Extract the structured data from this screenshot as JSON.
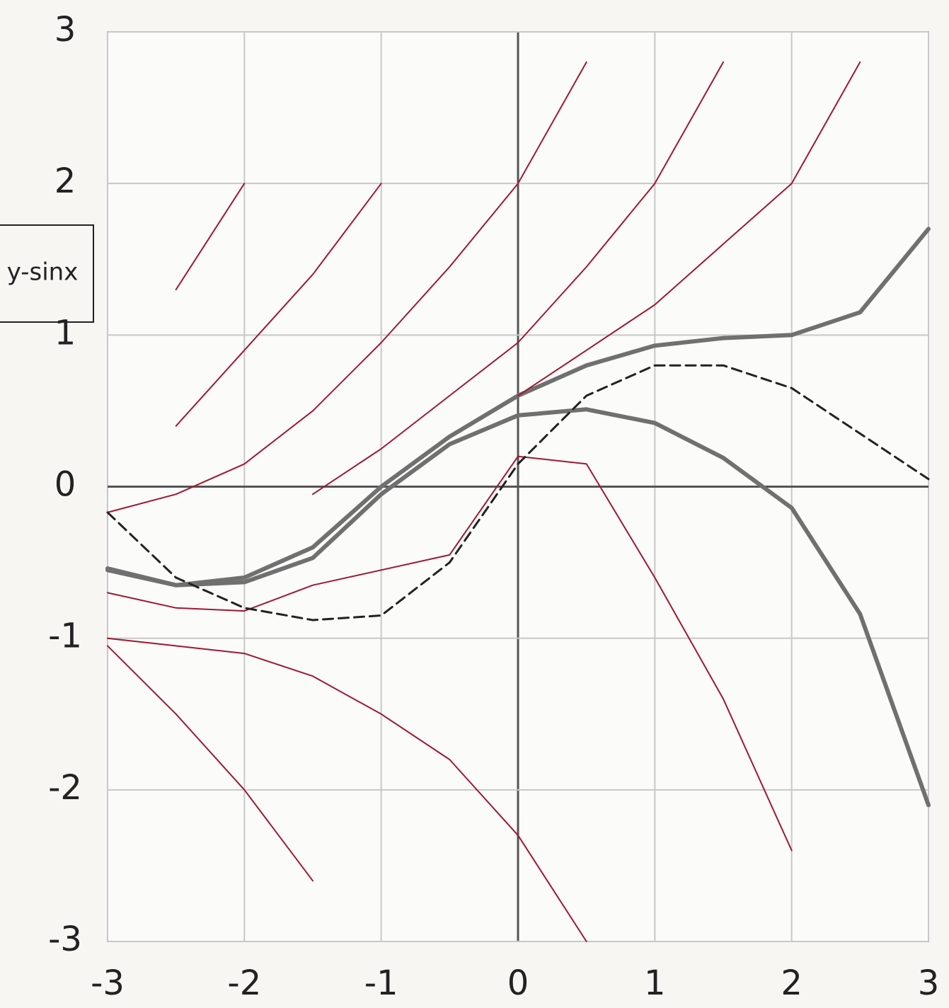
{
  "chart_data": {
    "type": "line",
    "annotation": "y-sinx",
    "x": [
      -3,
      -2.5,
      -2,
      -1.5,
      -1,
      -0.5,
      0,
      0.5,
      1,
      1.5,
      2,
      2.5,
      3
    ],
    "xlim": [
      -3,
      3
    ],
    "ylim": [
      -3,
      3
    ],
    "xticks": [
      -3,
      -2,
      -1,
      0,
      1,
      2,
      3
    ],
    "yticks": [
      -3,
      -2,
      -1,
      0,
      1,
      2,
      3
    ],
    "grid": true,
    "series": [
      {
        "color": "#707070",
        "width": 6,
        "values": [
          -0.54,
          -0.65,
          -0.63,
          -0.47,
          -0.05,
          0.28,
          0.47,
          0.51,
          0.42,
          0.19,
          -0.14,
          -0.84,
          -2.1
        ]
      },
      {
        "color": "#707070",
        "width": 6,
        "values": [
          -0.55,
          -0.65,
          -0.6,
          -0.4,
          0,
          0.33,
          0.6,
          0.8,
          0.93,
          0.98,
          1.0,
          1.15,
          1.7
        ]
      },
      {
        "color": "#a01830",
        "width": 2,
        "values": [
          null,
          1.3,
          2.0,
          null,
          null,
          null,
          null,
          null,
          null,
          null,
          null,
          null,
          null
        ]
      },
      {
        "color": "#a01830",
        "width": 2,
        "values": [
          null,
          0.4,
          0.9,
          1.4,
          2.0,
          null,
          null,
          null,
          null,
          null,
          null,
          null,
          null
        ]
      },
      {
        "color": "#a01830",
        "width": 2,
        "values": [
          -0.17,
          -0.05,
          0.15,
          0.5,
          0.95,
          1.45,
          2.0,
          2.8,
          null,
          null,
          null,
          null,
          null
        ]
      },
      {
        "color": "#a01830",
        "width": 2,
        "values": [
          null,
          null,
          null,
          -0.05,
          0.25,
          0.6,
          0.95,
          1.45,
          2.0,
          2.8,
          null,
          null,
          null
        ]
      },
      {
        "color": "#a01830",
        "width": 2,
        "values": [
          null,
          null,
          null,
          null,
          null,
          null,
          0.6,
          0.9,
          1.2,
          1.6,
          2.0,
          2.8,
          null
        ]
      },
      {
        "color": "#a01830",
        "width": 2,
        "values": [
          -0.7,
          -0.8,
          -0.82,
          -0.65,
          -0.55,
          -0.45,
          0.2,
          0.15,
          -0.6,
          -1.4,
          -2.4,
          null,
          null
        ]
      },
      {
        "color": "#a01830",
        "width": 2,
        "values": [
          -1.0,
          -1.05,
          -1.1,
          -1.25,
          -1.5,
          -1.8,
          -2.3,
          -3,
          null,
          null,
          null,
          null,
          null
        ]
      },
      {
        "color": "#a01830",
        "width": 2,
        "values": [
          -1.05,
          -1.5,
          -2.0,
          -2.6,
          null,
          null,
          null,
          null,
          null,
          null,
          null,
          null,
          null
        ]
      },
      {
        "color": "#222222",
        "width": 3,
        "dashed": true,
        "values": [
          -0.17,
          -0.6,
          -0.8,
          -0.88,
          -0.85,
          -0.5,
          0.15,
          0.6,
          0.8,
          0.8,
          0.65,
          0.35,
          0.05
        ]
      }
    ]
  }
}
